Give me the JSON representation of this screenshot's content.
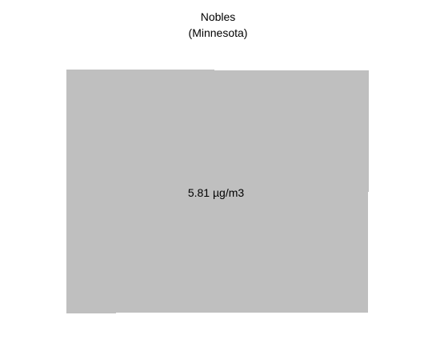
{
  "map": {
    "county_name": "Nobles",
    "state_name": "(Minnesota)",
    "value_label": "5.81 µg/m3",
    "fill_color": "#bfbfbf",
    "background_color": "#ffffff"
  }
}
